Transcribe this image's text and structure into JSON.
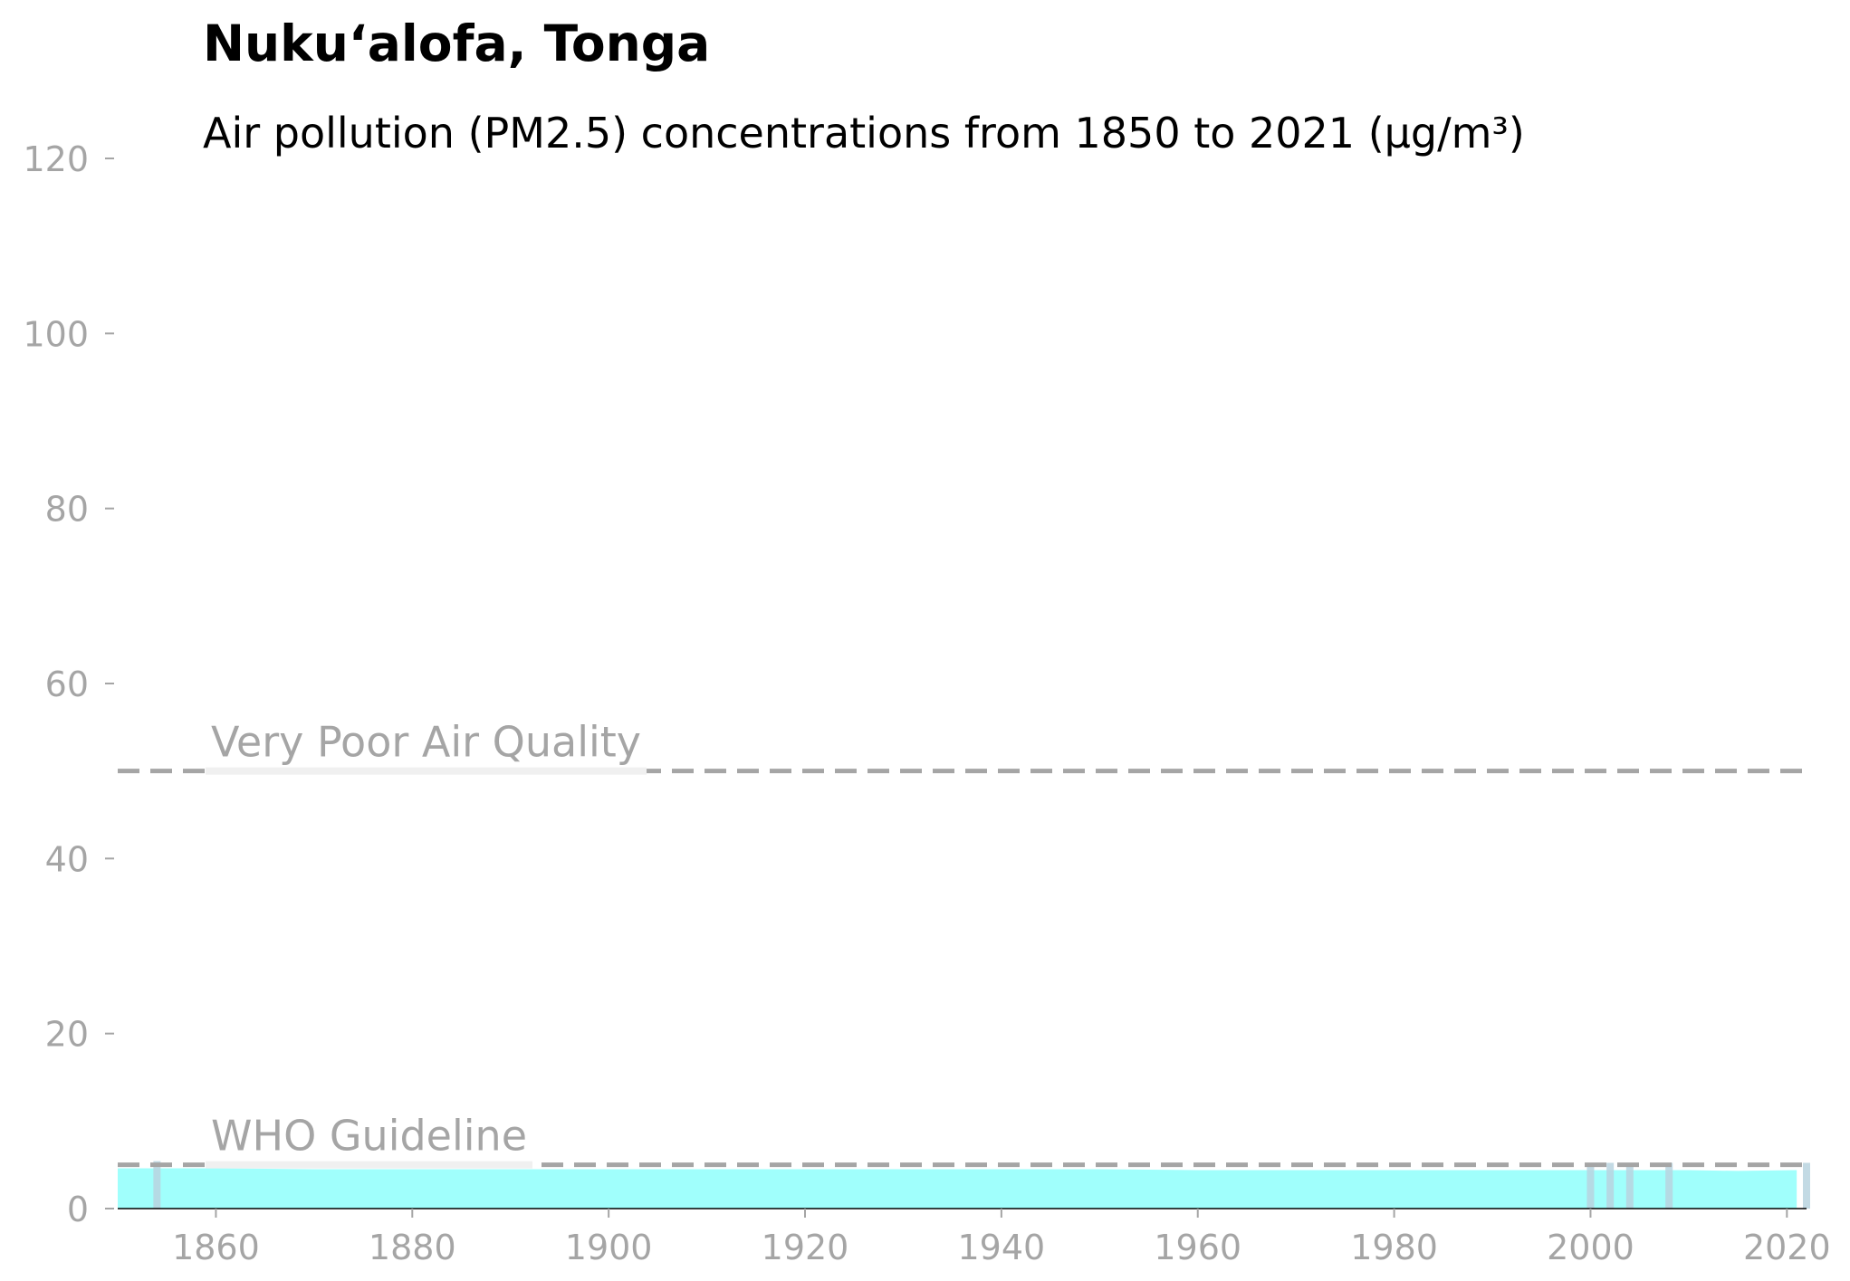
{
  "chart_data": {
    "type": "area",
    "title": "Nuku‘alofa, Tonga",
    "subtitle": "Air pollution (PM2.5) concentrations from 1850 to 2021 (µg/m³)",
    "xlabel": "",
    "ylabel": "",
    "xlim": [
      1850,
      2022
    ],
    "ylim": [
      0,
      120
    ],
    "x_ticks": [
      1860,
      1880,
      1900,
      1920,
      1940,
      1960,
      1980,
      2000,
      2020
    ],
    "y_ticks": [
      0,
      20,
      40,
      60,
      80,
      100,
      120
    ],
    "grid": false,
    "legend": "none",
    "fill_color": "#a0fffc",
    "series": [
      {
        "x": [
          1850,
          1855,
          1860,
          1870,
          1880,
          1890,
          1900,
          1910,
          1920,
          1930,
          1940,
          1950,
          1960,
          1970,
          1980,
          1990,
          2000,
          2005,
          2010,
          2015,
          2021
        ],
        "values": [
          4.6,
          4.6,
          4.6,
          4.5,
          4.5,
          4.5,
          4.5,
          4.5,
          4.5,
          4.5,
          4.5,
          4.5,
          4.4,
          4.4,
          4.4,
          4.4,
          4.4,
          4.4,
          4.4,
          4.3,
          4.4
        ]
      }
    ],
    "highlight_years": [
      1854,
      2000,
      2002,
      2004,
      2008,
      2022
    ],
    "reference_lines": [
      {
        "label": "Very Poor Air Quality",
        "value": 50
      },
      {
        "label": "WHO Guideline",
        "value": 5
      }
    ]
  }
}
